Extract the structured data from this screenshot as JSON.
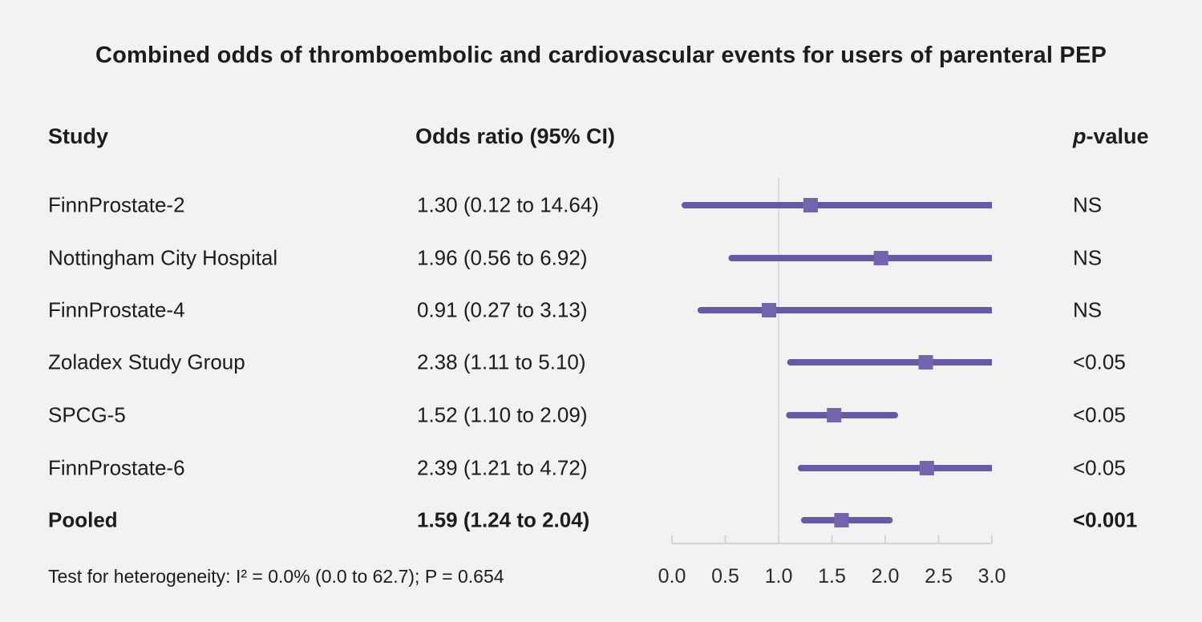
{
  "title": "Combined odds of thromboembolic and cardiovascular events for users of parenteral PEP",
  "columns": {
    "study": "Study",
    "odds_ratio": "Odds ratio (95% CI)",
    "p_italic": "p",
    "p_rest": "-value"
  },
  "footnote": "Test for heterogeneity: I² = 0.0% (0.0 to 62.7); P = 0.654",
  "colors": {
    "background": "#f2f2f3",
    "ci_line": "#675aa5",
    "marker": "#7464ae",
    "reference_line": "#d8dde2",
    "axis_line": "#d2d3d6",
    "text": "#1c1c1c"
  },
  "chart_data": {
    "type": "forest",
    "title": "Combined odds of thromboembolic and cardiovascular events for users of parenteral PEP",
    "xlabel": "Odds ratio",
    "xlim": [
      0.0,
      3.0
    ],
    "reference_value": 1.0,
    "x_ticks": [
      0.0,
      0.5,
      1.0,
      1.5,
      2.0,
      2.5,
      3.0
    ],
    "x_tick_labels": [
      "0.0",
      "0.5",
      "1.0",
      "1.5",
      "2.0",
      "2.5",
      "3.0"
    ],
    "grid": false,
    "studies": [
      {
        "name": "FinnProstate-2",
        "or": 1.3,
        "ci_low": 0.12,
        "ci_high": 14.64,
        "or_label": "1.30 (0.12 to 14.64)",
        "p_label": "NS",
        "bold": false
      },
      {
        "name": "Nottingham City Hospital",
        "or": 1.96,
        "ci_low": 0.56,
        "ci_high": 6.92,
        "or_label": "1.96 (0.56 to 6.92)",
        "p_label": "NS",
        "bold": false
      },
      {
        "name": "FinnProstate-4",
        "or": 0.91,
        "ci_low": 0.27,
        "ci_high": 3.13,
        "or_label": "0.91 (0.27 to 3.13)",
        "p_label": "NS",
        "bold": false
      },
      {
        "name": "Zoladex Study Group",
        "or": 2.38,
        "ci_low": 1.11,
        "ci_high": 5.1,
        "or_label": "2.38 (1.11 to 5.10)",
        "p_label": "<0.05",
        "bold": false
      },
      {
        "name": "SPCG-5",
        "or": 1.52,
        "ci_low": 1.1,
        "ci_high": 2.09,
        "or_label": "1.52 (1.10 to 2.09)",
        "p_label": "<0.05",
        "bold": false
      },
      {
        "name": "FinnProstate-6",
        "or": 2.39,
        "ci_low": 1.21,
        "ci_high": 4.72,
        "or_label": "2.39 (1.21 to 4.72)",
        "p_label": "<0.05",
        "bold": false
      },
      {
        "name": "Pooled",
        "or": 1.59,
        "ci_low": 1.24,
        "ci_high": 2.04,
        "or_label": "1.59 (1.24 to 2.04)",
        "p_label": "<0.001",
        "bold": true
      }
    ]
  }
}
